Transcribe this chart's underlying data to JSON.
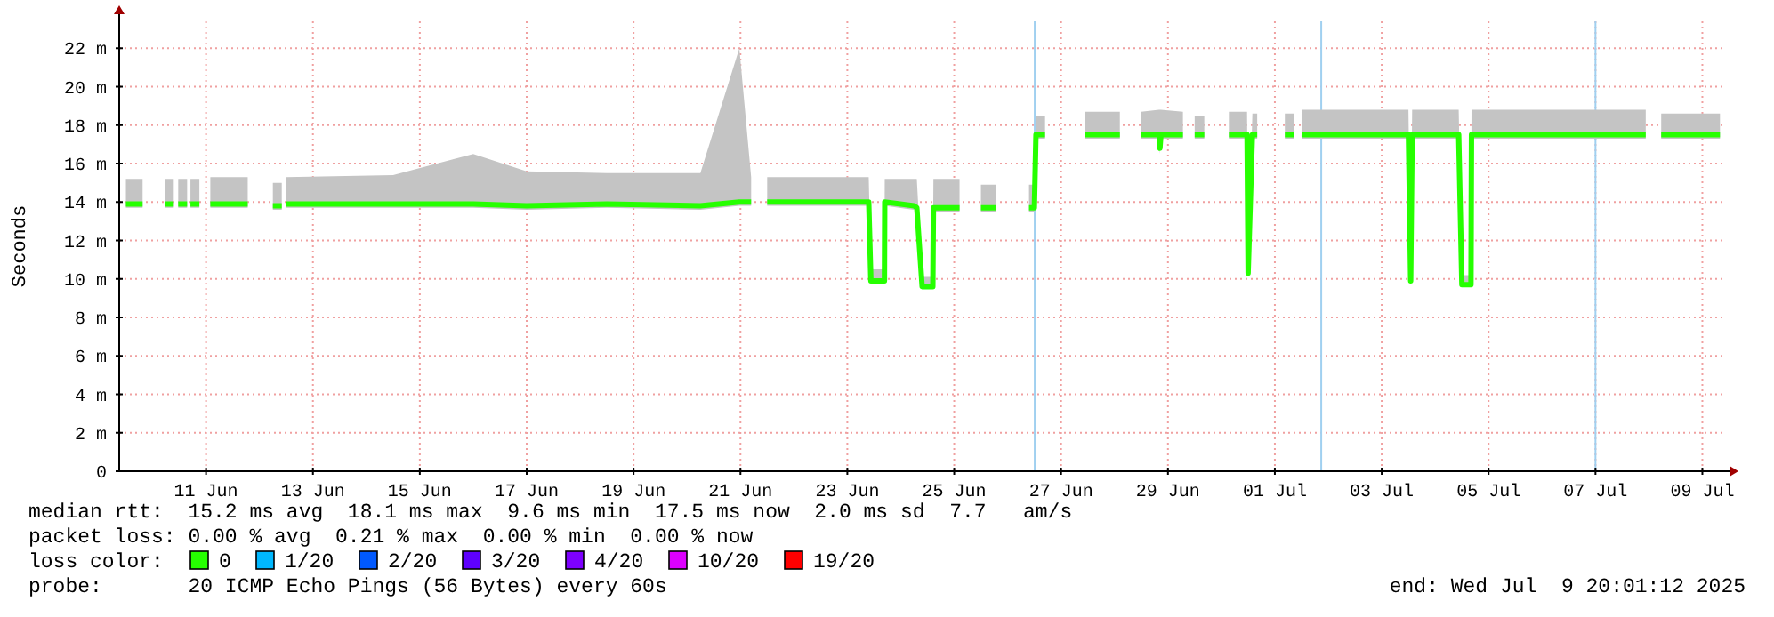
{
  "chart_data": {
    "type": "line",
    "ylabel": "Seconds",
    "legend_title": "loss color:",
    "legend": "bottom",
    "grid": true,
    "line_style": "solid",
    "marker": "none",
    "xlim": [
      "2025-06-09T21:00",
      "2025-07-09T21:00"
    ],
    "ylim": [
      0,
      23.4
    ],
    "yticks": [
      0,
      {
        "value": 2,
        "label": "2 m"
      },
      {
        "value": 4,
        "label": "4 m"
      },
      {
        "value": 6,
        "label": "6 m"
      },
      {
        "value": 8,
        "label": "8 m"
      },
      {
        "value": 10,
        "label": "10 m"
      },
      {
        "value": 12,
        "label": "12 m"
      },
      {
        "value": 14,
        "label": "14 m"
      },
      {
        "value": 16,
        "label": "16 m"
      },
      {
        "value": 18,
        "label": "18 m"
      },
      {
        "value": 20,
        "label": "20 m"
      },
      {
        "value": 22,
        "label": "22 m"
      }
    ],
    "xticks": [
      {
        "value": "2025-06-11T12:00",
        "label": "11 Jun"
      },
      {
        "value": "2025-06-13T12:00",
        "label": "13 Jun"
      },
      {
        "value": "2025-06-15T12:00",
        "label": "15 Jun"
      },
      {
        "value": "2025-06-17T12:00",
        "label": "17 Jun"
      },
      {
        "value": "2025-06-19T12:00",
        "label": "19 Jun"
      },
      {
        "value": "2025-06-21T12:00",
        "label": "21 Jun"
      },
      {
        "value": "2025-06-23T12:00",
        "label": "23 Jun"
      },
      {
        "value": "2025-06-25T12:00",
        "label": "25 Jun"
      },
      {
        "value": "2025-06-27T12:00",
        "label": "27 Jun"
      },
      {
        "value": "2025-06-29T12:00",
        "label": "29 Jun"
      },
      {
        "value": "2025-07-01T12:00",
        "label": "01 Jul"
      },
      {
        "value": "2025-07-03T12:00",
        "label": "03 Jul"
      },
      {
        "value": "2025-07-05T12:00",
        "label": "05 Jul"
      },
      {
        "value": "2025-07-07T12:00",
        "label": "07 Jul"
      },
      {
        "value": "2025-07-09T12:00",
        "label": "09 Jul"
      }
    ],
    "ref_lines": [
      {
        "axis": "x",
        "value": "2025-06-27T00:10",
        "color": "#a0d0f0"
      },
      {
        "axis": "x",
        "value": "2025-07-02T08:50",
        "color": "#a0d0f0"
      },
      {
        "axis": "x",
        "value": "2025-07-07T12:00",
        "color": "#a0d0f0"
      }
    ],
    "annotations": [
      "median rtt:  15.2 ms avg  18.1 ms max  9.6 ms min  17.5 ms now  2.0 ms sd  7.7   am/s",
      "packet loss: 0.00 % avg  0.21 % max  0.00 % min  0.00 % now",
      "probe:       20 ICMP Echo Pings (56 Bytes) every 60s",
      "end: Wed Jul  9 20:01:12 2025"
    ],
    "series": [
      {
        "name": "0",
        "color": "#26ff00",
        "x": [
          "2025-06-10T00:00",
          "2025-06-10T07:30",
          "2025-06-10T12:00",
          "2025-06-10T17:30",
          "2025-06-10T21:30",
          "2025-06-10T22:30",
          "2025-06-10T23:30",
          "2025-06-11T03:30",
          "2025-06-11T04:15",
          "2025-06-11T05:00",
          "2025-06-11T09:00",
          "2025-06-11T10:00",
          "2025-06-11T13:55",
          "2025-06-12T06:43",
          "2025-06-12T12:00",
          "2025-06-12T18:00",
          "2025-06-12T22:00",
          "2025-06-12T22:30",
          "2025-06-13T00:00",
          "2025-06-15T00:00",
          "2025-06-16T12:00",
          "2025-06-17T12:00",
          "2025-06-19T00:00",
          "2025-06-20T18:00",
          "2025-06-21T11:30",
          "2025-06-21T16:48",
          "2025-06-21T20:00",
          "2025-06-22T00:00",
          "2025-06-23T21:36",
          "2025-06-23T22:34",
          "2025-06-24T04:40",
          "2025-06-24T04:48",
          "2025-06-24T18:00",
          "2025-06-24T19:12",
          "2025-06-24T21:36",
          "2025-06-25T02:24",
          "2025-06-25T02:40",
          "2025-06-25T14:24",
          "2025-06-25T18:00",
          "2025-06-26T00:00",
          "2025-06-26T06:43",
          "2025-06-26T12:00",
          "2025-06-26T21:36",
          "2025-06-27T00:00",
          "2025-06-27T00:43",
          "2025-06-27T04:48",
          "2025-06-27T12:00",
          "2025-06-27T22:48",
          "2025-06-28T14:24",
          "2025-06-28T20:00",
          "2025-06-29T00:00",
          "2025-06-29T08:00",
          "2025-06-29T08:24",
          "2025-06-29T08:50",
          "2025-06-29T18:43",
          "2025-06-29T21:00",
          "2025-06-30T00:00",
          "2025-06-30T04:19",
          "2025-06-30T10:00",
          "2025-06-30T15:22",
          "2025-06-30T23:31",
          "2025-07-01T00:00",
          "2025-07-01T01:55",
          "2025-07-01T04:05",
          "2025-07-01T10:00",
          "2025-07-01T16:30",
          "2025-07-01T20:30",
          "2025-07-01T21:00",
          "2025-07-02T00:00",
          "2025-07-04T00:00",
          "2025-07-04T01:00",
          "2025-07-04T01:40",
          "2025-07-04T22:34",
          "2025-07-05T00:00",
          "2025-07-05T04:05",
          "2025-07-05T04:19",
          "2025-07-08T10:34",
          "2025-07-08T14:00",
          "2025-07-08T17:31",
          "2025-07-09T19:55"
        ],
        "values": [
          13.9,
          13.9,
          null,
          13.9,
          13.9,
          null,
          13.9,
          13.9,
          null,
          13.9,
          13.9,
          null,
          13.9,
          13.9,
          null,
          13.8,
          13.8,
          null,
          13.9,
          13.9,
          13.9,
          13.8,
          13.9,
          13.8,
          14,
          14,
          null,
          14,
          14,
          9.9,
          9.9,
          14,
          13.8,
          13.7,
          9.6,
          9.6,
          13.7,
          13.7,
          null,
          13.7,
          13.7,
          null,
          13.7,
          13.7,
          17.5,
          17.5,
          null,
          17.5,
          17.5,
          null,
          17.5,
          17.5,
          16.8,
          17.5,
          17.5,
          null,
          17.5,
          17.5,
          null,
          17.5,
          17.5,
          10.3,
          17.5,
          17.5,
          null,
          17.5,
          17.5,
          null,
          17.5,
          17.5,
          9.9,
          17.5,
          17.5,
          9.7,
          9.7,
          17.5,
          17.5,
          null,
          17.5,
          17.5
        ],
        "lower": [
          13.7,
          13.7,
          null,
          13.7,
          13.7,
          null,
          13.7,
          13.7,
          null,
          13.7,
          13.7,
          null,
          13.7,
          13.7,
          null,
          13.6,
          13.6,
          null,
          13.7,
          13.7,
          13.7,
          13.6,
          13.7,
          13.6,
          13.8,
          13.8,
          null,
          13.8,
          13.8,
          9.8,
          9.8,
          13.8,
          13.6,
          13.5,
          9.5,
          9.5,
          13.5,
          13.5,
          null,
          13.5,
          13.5,
          null,
          13.5,
          13.5,
          17.3,
          17.3,
          null,
          17.3,
          17.3,
          null,
          17.3,
          17.3,
          16.5,
          17.3,
          17.3,
          null,
          17.3,
          17.3,
          null,
          17.3,
          17.3,
          10.2,
          17.3,
          17.3,
          null,
          17.3,
          17.3,
          null,
          17.3,
          17.3,
          9.8,
          17.3,
          17.3,
          9.6,
          9.6,
          17.3,
          17.3,
          null,
          17.3,
          17.3
        ],
        "upper": [
          15.2,
          15.2,
          null,
          15.2,
          15.2,
          null,
          15.2,
          15.2,
          null,
          15.2,
          15.2,
          null,
          15.3,
          15.3,
          null,
          15,
          15,
          null,
          15.3,
          15.4,
          16.5,
          15.6,
          15.5,
          15.5,
          22,
          15.3,
          null,
          15.3,
          15.3,
          10.5,
          10.5,
          15.2,
          15.2,
          15.2,
          10.1,
          10.1,
          15.2,
          15.2,
          null,
          14.9,
          14.9,
          null,
          14.9,
          14.9,
          18.5,
          18.5,
          null,
          18.7,
          18.7,
          null,
          18.7,
          18.8,
          18.8,
          18.8,
          18.7,
          null,
          18.5,
          18.5,
          null,
          18.7,
          18.7,
          10.6,
          18.6,
          18.6,
          null,
          18.6,
          18.6,
          null,
          18.8,
          18.8,
          10.2,
          18.8,
          18.8,
          10.2,
          10.2,
          18.8,
          18.8,
          null,
          18.6,
          18.6
        ]
      },
      {
        "name": "1/20",
        "color": "#00b8ff"
      },
      {
        "name": "2/20",
        "color": "#0059ff"
      },
      {
        "name": "3/20",
        "color": "#5e00ff"
      },
      {
        "name": "4/20",
        "color": "#7e00ff"
      },
      {
        "name": "10/20",
        "color": "#dd00ff"
      },
      {
        "name": "19/20",
        "color": "#ff0000"
      }
    ]
  }
}
